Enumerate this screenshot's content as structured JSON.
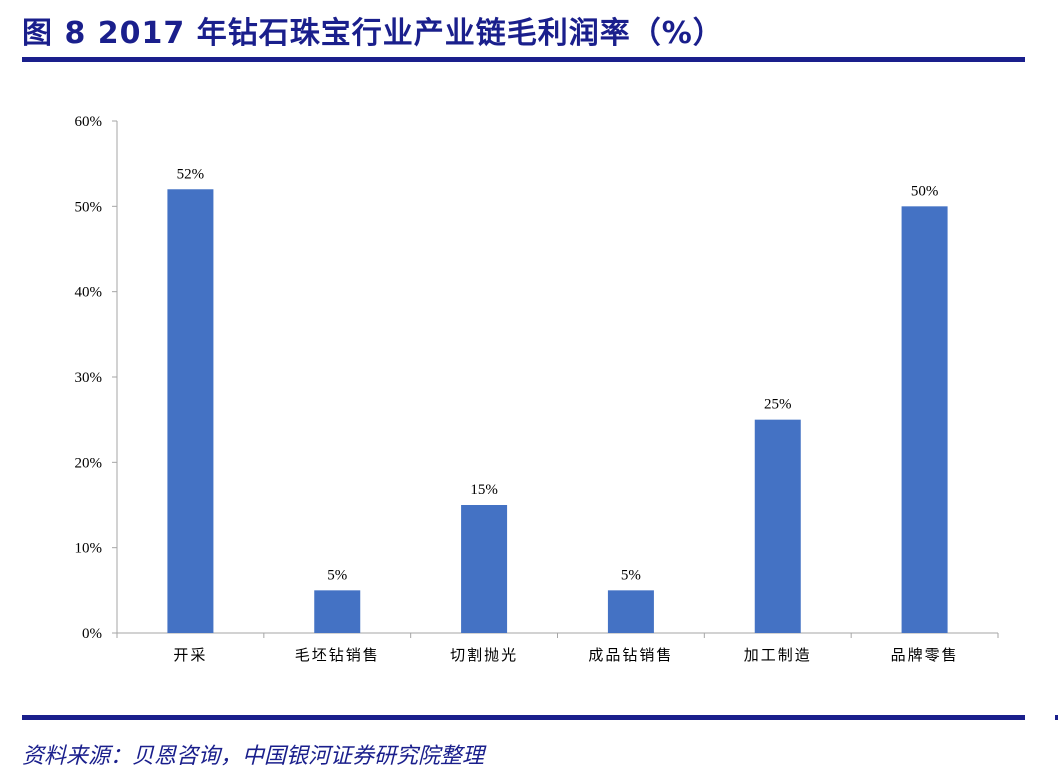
{
  "figure": {
    "title": "图 8 2017 年钻石珠宝行业产业链毛利润率（%）",
    "source": "资料来源：贝恩咨询，中国银河证券研究院整理"
  },
  "colors": {
    "bar": "#4472c4",
    "title": "#1a1f8c",
    "axis": "#a6a6a6"
  },
  "chart_data": {
    "type": "bar",
    "title": "",
    "xlabel": "",
    "ylabel": "",
    "categories": [
      "开采",
      "毛坯钻销售",
      "切割抛光",
      "成品钻销售",
      "加工制造",
      "品牌零售"
    ],
    "values": [
      52,
      5,
      15,
      5,
      25,
      50
    ],
    "value_labels": [
      "52%",
      "5%",
      "15%",
      "5%",
      "25%",
      "50%"
    ],
    "ylim": [
      0,
      60
    ],
    "yticks": [
      0,
      10,
      20,
      30,
      40,
      50,
      60
    ],
    "ytick_labels": [
      "0%",
      "10%",
      "20%",
      "30%",
      "40%",
      "50%",
      "60%"
    ],
    "grid": false,
    "legend": "none"
  }
}
